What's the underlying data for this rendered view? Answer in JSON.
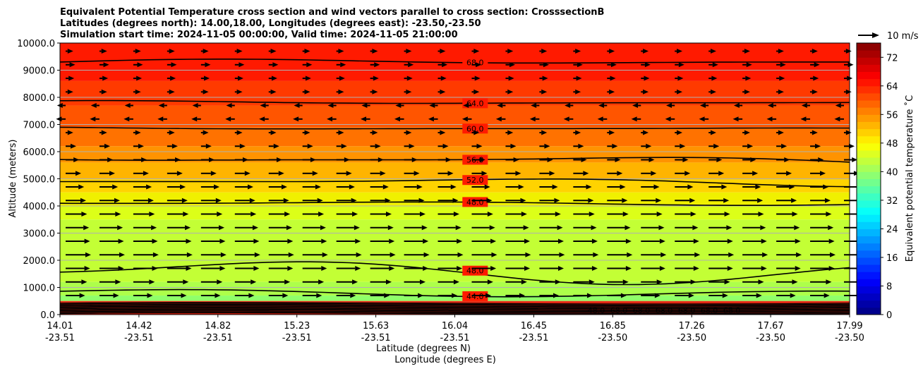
{
  "chart_data": {
    "type": "heatmap",
    "title_lines": [
      "Equivalent Potential Temperature cross section and wind vectors parallel to cross section: CrosssectionB",
      "Latitudes (degrees north): 14.00,18.00, Longitudes (degrees east): -23.50,-23.50",
      "Simulation start time: 2024-11-05 00:00:00, Valid time: 2024-11-05 21:00:00"
    ],
    "ylabel": "Altitude (meters)",
    "xlabel_lat": "Latitude (degrees N)",
    "xlabel_lon": "Longitude (degrees E)",
    "ylim": [
      0,
      10000
    ],
    "yticks": [
      "0.0",
      "1000.0",
      "2000.0",
      "3000.0",
      "4000.0",
      "5000.0",
      "6000.0",
      "7000.0",
      "8000.0",
      "9000.0",
      "10000.0"
    ],
    "xticks": [
      {
        "lat": "14.01",
        "lon": "-23.51"
      },
      {
        "lat": "14.42",
        "lon": "-23.51"
      },
      {
        "lat": "14.82",
        "lon": "-23.51"
      },
      {
        "lat": "15.23",
        "lon": "-23.51"
      },
      {
        "lat": "15.63",
        "lon": "-23.51"
      },
      {
        "lat": "16.04",
        "lon": "-23.51"
      },
      {
        "lat": "16.45",
        "lon": "-23.51"
      },
      {
        "lat": "16.85",
        "lon": "-23.50"
      },
      {
        "lat": "17.26",
        "lon": "-23.50"
      },
      {
        "lat": "17.67",
        "lon": "-23.50"
      },
      {
        "lat": "17.99",
        "lon": "-23.50"
      }
    ],
    "colorbar": {
      "label": "Equivalent potential temperature ˚C",
      "min": 0,
      "max": 76,
      "step": 2,
      "ticks": [
        "0",
        "8",
        "16",
        "24",
        "32",
        "40",
        "48",
        "56",
        "64",
        "72"
      ]
    },
    "wind_key": {
      "label": "10 m/s"
    },
    "color_bands": [
      {
        "z": 10000,
        "c": "#ff1a00"
      },
      {
        "z": 8600,
        "c": "#ff3a00"
      },
      {
        "z": 7700,
        "c": "#ff5500"
      },
      {
        "z": 6900,
        "c": "#ff7200"
      },
      {
        "z": 6200,
        "c": "#ff9300"
      },
      {
        "z": 5600,
        "c": "#ffb400"
      },
      {
        "z": 5000,
        "c": "#ffd300"
      },
      {
        "z": 4500,
        "c": "#f0f000"
      },
      {
        "z": 4000,
        "c": "#dcff18"
      },
      {
        "z": 3500,
        "c": "#c3ff35"
      },
      {
        "z": 1200,
        "c": "#adff4a"
      },
      {
        "z": 700,
        "c": "#8fff6a"
      },
      {
        "z": 500,
        "c": "#e8341a"
      }
    ],
    "contours": [
      {
        "level": "68.0",
        "z": 9300,
        "amp": 120,
        "label_at": 0.49
      },
      {
        "level": "64.0",
        "z": 7800,
        "amp": 100,
        "label_at": 0.49
      },
      {
        "level": "60.0",
        "z": 6850,
        "amp": 90,
        "label_at": 0.49
      },
      {
        "level": "56.0",
        "z": 5700,
        "amp": 250,
        "label_at": 0.49
      },
      {
        "level": "52.0",
        "z": 4900,
        "amp": 200,
        "label_at": 0.49
      },
      {
        "level": "48.0",
        "z": 4100,
        "amp": 80,
        "label_at": 0.49
      },
      {
        "level": "48.0",
        "z": 1600,
        "amp": 500,
        "label_at": 0.49
      },
      {
        "level": "44.0",
        "z": 800,
        "amp": 150,
        "label_at": 0.49
      }
    ],
    "surface_labels": [
      "48.0",
      "68.0",
      "68.0",
      "68.0",
      "68.0",
      "68.0",
      "68.0"
    ],
    "wind_rows": [
      {
        "z": 9700,
        "u": 0.2
      },
      {
        "z": 9200,
        "u": 0.4
      },
      {
        "z": 8700,
        "u": 0.3
      },
      {
        "z": 8200,
        "u": 0.2
      },
      {
        "z": 7700,
        "u": -0.3
      },
      {
        "z": 7200,
        "u": -0.4
      },
      {
        "z": 6700,
        "u": 0.2
      },
      {
        "z": 6200,
        "u": 0.5
      },
      {
        "z": 5700,
        "u": 0.8
      },
      {
        "z": 5200,
        "u": 1.0
      },
      {
        "z": 4700,
        "u": 1.3
      },
      {
        "z": 4200,
        "u": 1.5
      },
      {
        "z": 3700,
        "u": 1.6
      },
      {
        "z": 3200,
        "u": 1.8
      },
      {
        "z": 2700,
        "u": 1.9
      },
      {
        "z": 2200,
        "u": 2.0
      },
      {
        "z": 1700,
        "u": 1.9
      },
      {
        "z": 1200,
        "u": 1.6
      },
      {
        "z": 700,
        "u": 1.4
      }
    ]
  }
}
